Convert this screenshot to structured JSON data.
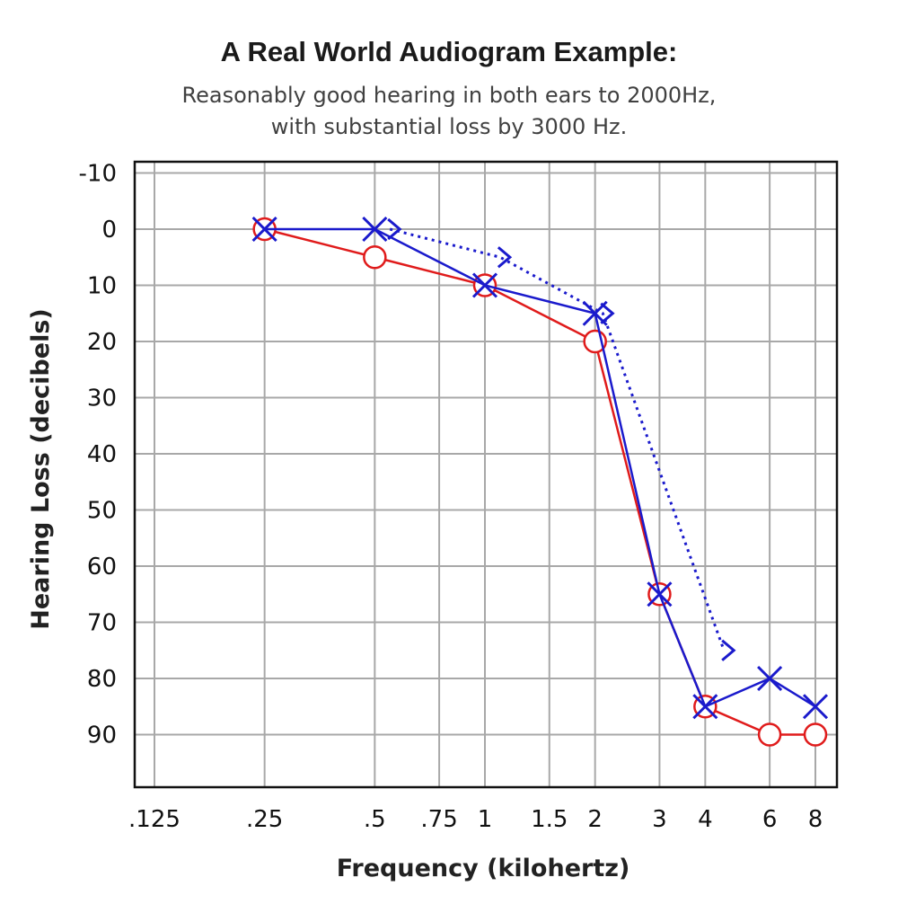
{
  "chart_data": {
    "type": "line",
    "title": "A Real World Audiogram Example:",
    "subtitle_lines": [
      "Reasonably good hearing in both ears to 2000Hz,",
      "with substantial loss by 3000 Hz."
    ],
    "xlabel": "Frequency (kilohertz)",
    "ylabel": "Hearing Loss (decibels)",
    "x_ticks": [
      ".125",
      ".25",
      ".5",
      ".75",
      "1",
      "1.5",
      "2",
      "3",
      "4",
      "6",
      "8"
    ],
    "x_tick_values": [
      0.125,
      0.25,
      0.5,
      0.75,
      1,
      1.5,
      2,
      3,
      4,
      6,
      8
    ],
    "x_scale": "log",
    "y_ticks": [
      "-10",
      "0",
      "10",
      "20",
      "30",
      "40",
      "50",
      "60",
      "70",
      "80",
      "90"
    ],
    "y_tick_values": [
      -10,
      0,
      10,
      20,
      30,
      40,
      50,
      60,
      70,
      80,
      90
    ],
    "ylim": [
      -10,
      100
    ],
    "y_inverted": true,
    "grid": true,
    "series": [
      {
        "color": "#e01b1b",
        "marker": "circle",
        "line": "solid",
        "x": [
          0.25,
          0.5,
          1,
          2,
          3,
          4,
          6,
          8
        ],
        "y": [
          0,
          5,
          10,
          20,
          65,
          85,
          90,
          90
        ]
      },
      {
        "color": "#1a1acc",
        "marker": "x",
        "line": "solid",
        "x": [
          0.25,
          0.5,
          1,
          2,
          3,
          4,
          6,
          8
        ],
        "y": [
          0,
          0,
          10,
          15,
          65,
          85,
          80,
          85
        ]
      },
      {
        "color": "#1a1acc",
        "marker": "bracket",
        "line": "dotted",
        "x": [
          0.55,
          1.1,
          2.1,
          4.5
        ],
        "y": [
          0,
          5,
          15,
          75
        ]
      }
    ]
  }
}
